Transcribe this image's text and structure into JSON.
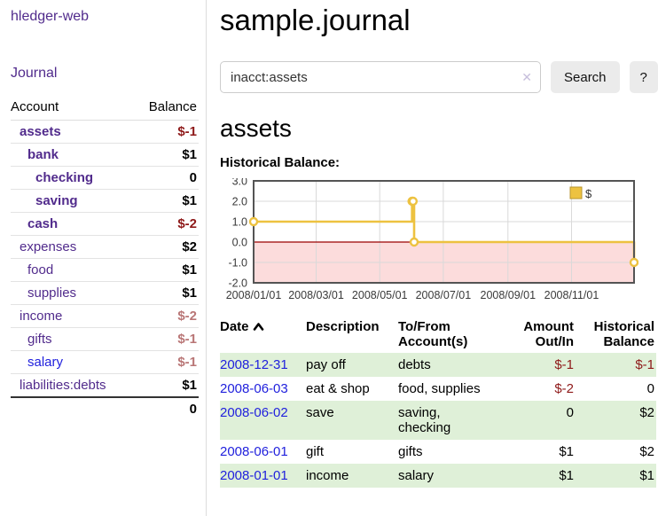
{
  "app": {
    "brand": "hledger-web",
    "nav_journal": "Journal"
  },
  "colors": {
    "purple": "#512b8c",
    "blue": "#2121dd",
    "negative_red": "#8e1919",
    "muted_negative": "#b97676",
    "row_green": "#dff0d8",
    "chart_line_gold": "#edc240",
    "chart_negative_fill": "#fcdcdc",
    "chart_zero_line": "#9a0000",
    "chart_grid": "#d9d9d9",
    "chart_border": "#545454"
  },
  "icons": {
    "clear_icon": "✕",
    "sort_asc_icon": "chevron-up"
  },
  "sidebar": {
    "header": {
      "account": "Account",
      "balance": "Balance"
    },
    "accounts": [
      {
        "name": "assets",
        "depth": 1,
        "balance": "$-1",
        "matched": true,
        "balance_style": "neg"
      },
      {
        "name": "bank",
        "depth": 2,
        "balance": "$1",
        "matched": true,
        "balance_style": "normal"
      },
      {
        "name": "checking",
        "depth": 3,
        "balance": "0",
        "matched": true,
        "balance_style": "normal"
      },
      {
        "name": "saving",
        "depth": 3,
        "balance": "$1",
        "matched": true,
        "balance_style": "normal"
      },
      {
        "name": "cash",
        "depth": 2,
        "balance": "$-2",
        "matched": true,
        "balance_style": "neg"
      },
      {
        "name": "expenses",
        "depth": 1,
        "balance": "$2",
        "matched": false,
        "balance_style": "normal"
      },
      {
        "name": "food",
        "depth": 2,
        "balance": "$1",
        "matched": false,
        "balance_style": "normal"
      },
      {
        "name": "supplies",
        "depth": 2,
        "balance": "$1",
        "matched": false,
        "balance_style": "normal"
      },
      {
        "name": "income",
        "depth": 1,
        "balance": "$-2",
        "matched": false,
        "balance_style": "muted"
      },
      {
        "name": "gifts",
        "depth": 2,
        "balance": "$-1",
        "matched": false,
        "balance_style": "muted"
      },
      {
        "name": "salary",
        "depth": 2,
        "balance": "$-1",
        "matched": false,
        "balance_style": "muted",
        "link_color": "blue"
      },
      {
        "name": "liabilities:debts",
        "depth": 1,
        "balance": "$1",
        "matched": false,
        "balance_style": "normal"
      }
    ],
    "total": "0"
  },
  "main": {
    "title": "sample.journal",
    "search": {
      "value": "inacct:assets",
      "button_label": "Search",
      "help_label": "?"
    },
    "section_title": "assets",
    "chart_label": "Historical Balance:"
  },
  "chart_data": {
    "type": "line",
    "step": true,
    "title": "Historical Balance:",
    "legend": "$",
    "legend_position": "top-right",
    "ylim": [
      -2,
      3
    ],
    "yticks": [
      3.0,
      2.0,
      1.0,
      0.0,
      -1.0,
      -2.0
    ],
    "xticks": [
      {
        "label": "2008/01/01",
        "pos": 0.0
      },
      {
        "label": "2008/03/01",
        "pos": 0.1644
      },
      {
        "label": "2008/05/01",
        "pos": 0.3315
      },
      {
        "label": "2008/07/01",
        "pos": 0.4986
      },
      {
        "label": "2008/09/01",
        "pos": 0.6685
      },
      {
        "label": "2008/11/01",
        "pos": 0.8356
      }
    ],
    "grid": true,
    "negative_region_below": 0,
    "series": [
      {
        "name": "$",
        "points": [
          {
            "date": "2008-01-01",
            "x": 0.0,
            "y": 1
          },
          {
            "date": "2008-06-01",
            "x": 0.4164,
            "y": 2
          },
          {
            "date": "2008-06-02",
            "x": 0.4192,
            "y": 2
          },
          {
            "date": "2008-06-03",
            "x": 0.4219,
            "y": 0
          },
          {
            "date": "2008-12-31",
            "x": 1.0,
            "y": -1
          }
        ]
      }
    ]
  },
  "register": {
    "columns": {
      "date": "Date",
      "description": "Description",
      "accounts": "To/From\nAccount(s)",
      "amount": "Amount\nOut/In",
      "balance": "Historical\nBalance"
    },
    "rows": [
      {
        "date": "2008-12-31",
        "description": "pay off",
        "accounts": "debts",
        "amount": "$-1",
        "amount_neg": true,
        "balance": "$-1",
        "balance_neg": true,
        "green": true
      },
      {
        "date": "2008-06-03",
        "description": "eat & shop",
        "accounts": "food, supplies",
        "amount": "$-2",
        "amount_neg": true,
        "balance": "0",
        "balance_neg": false,
        "green": false
      },
      {
        "date": "2008-06-02",
        "description": "save",
        "accounts": "saving,\nchecking",
        "amount": "0",
        "amount_neg": false,
        "balance": "$2",
        "balance_neg": false,
        "green": true
      },
      {
        "date": "2008-06-01",
        "description": "gift",
        "accounts": "gifts",
        "amount": "$1",
        "amount_neg": false,
        "balance": "$2",
        "balance_neg": false,
        "green": false
      },
      {
        "date": "2008-01-01",
        "description": "income",
        "accounts": "salary",
        "amount": "$1",
        "amount_neg": false,
        "balance": "$1",
        "balance_neg": false,
        "green": true
      }
    ]
  }
}
